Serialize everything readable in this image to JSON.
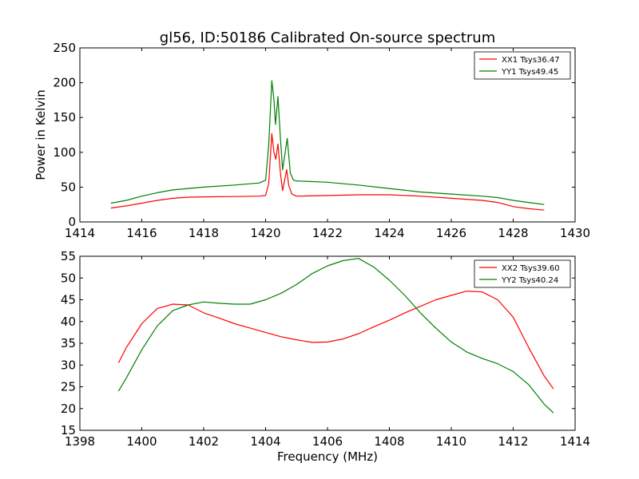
{
  "figure": {
    "title": "gl56, ID:50186 Calibrated On-source spectrum",
    "ylabel": "Power in Kelvin",
    "xlabel": "Frequency (MHz)"
  },
  "colors": {
    "red": "#ff0000",
    "green": "#007f00"
  },
  "chart_data": [
    {
      "type": "line",
      "title": "gl56, ID:50186 Calibrated On-source spectrum",
      "ylabel": "Power in Kelvin",
      "xlabel": "",
      "xlim": [
        1414,
        1430
      ],
      "ylim": [
        0,
        250
      ],
      "xticks": [
        "1414",
        "1416",
        "1418",
        "1420",
        "1422",
        "1424",
        "1426",
        "1428",
        "1430"
      ],
      "yticks": [
        "0",
        "50",
        "100",
        "150",
        "200",
        "250"
      ],
      "grid": false,
      "legend_position": "top-right",
      "series": [
        {
          "name": "XX1 Tsys36.47",
          "color": "#ff0000",
          "points": [
            [
              1415,
              20
            ],
            [
              1415.5,
              23
            ],
            [
              1416,
              27
            ],
            [
              1416.5,
              31
            ],
            [
              1417,
              34
            ],
            [
              1417.5,
              35.5
            ],
            [
              1418,
              36
            ],
            [
              1419,
              36.5
            ],
            [
              1419.8,
              37
            ],
            [
              1420.0,
              38
            ],
            [
              1420.1,
              55
            ],
            [
              1420.2,
              127
            ],
            [
              1420.27,
              100
            ],
            [
              1420.33,
              90
            ],
            [
              1420.4,
              112
            ],
            [
              1420.48,
              70
            ],
            [
              1420.55,
              45
            ],
            [
              1420.68,
              75
            ],
            [
              1420.75,
              52
            ],
            [
              1420.85,
              40
            ],
            [
              1421,
              37
            ],
            [
              1422,
              38
            ],
            [
              1423,
              39
            ],
            [
              1424,
              39
            ],
            [
              1425,
              37
            ],
            [
              1426,
              34
            ],
            [
              1427,
              31
            ],
            [
              1427.5,
              28
            ],
            [
              1428,
              22
            ],
            [
              1428.5,
              19
            ],
            [
              1429,
              17
            ]
          ]
        },
        {
          "name": "YY1 Tsys49.45",
          "color": "#007f00",
          "points": [
            [
              1415,
              27
            ],
            [
              1415.5,
              31
            ],
            [
              1416,
              37
            ],
            [
              1416.5,
              42
            ],
            [
              1417,
              46
            ],
            [
              1417.5,
              48
            ],
            [
              1418,
              50
            ],
            [
              1419,
              53
            ],
            [
              1419.8,
              56
            ],
            [
              1420.0,
              60
            ],
            [
              1420.1,
              110
            ],
            [
              1420.2,
              203
            ],
            [
              1420.27,
              175
            ],
            [
              1420.32,
              140
            ],
            [
              1420.4,
              180
            ],
            [
              1420.48,
              120
            ],
            [
              1420.55,
              75
            ],
            [
              1420.7,
              120
            ],
            [
              1420.8,
              70
            ],
            [
              1420.9,
              60
            ],
            [
              1421,
              59
            ],
            [
              1422,
              57
            ],
            [
              1423,
              53
            ],
            [
              1424,
              48
            ],
            [
              1425,
              43
            ],
            [
              1426,
              40
            ],
            [
              1427,
              37
            ],
            [
              1427.5,
              35
            ],
            [
              1428,
              31
            ],
            [
              1428.5,
              28
            ],
            [
              1429,
              25
            ]
          ]
        }
      ]
    },
    {
      "type": "line",
      "title": "",
      "ylabel": "",
      "xlabel": "Frequency (MHz)",
      "xlim": [
        1398,
        1414
      ],
      "ylim": [
        15,
        55
      ],
      "xticks": [
        "1398",
        "1400",
        "1402",
        "1404",
        "1406",
        "1408",
        "1410",
        "1412",
        "1414"
      ],
      "yticks": [
        "15",
        "20",
        "25",
        "30",
        "35",
        "40",
        "45",
        "50",
        "55"
      ],
      "grid": false,
      "legend_position": "top-right",
      "series": [
        {
          "name": "XX2 Tsys39.60",
          "color": "#ff0000",
          "points": [
            [
              1399.25,
              30.5
            ],
            [
              1399.5,
              34
            ],
            [
              1400,
              39.5
            ],
            [
              1400.5,
              43
            ],
            [
              1401,
              44
            ],
            [
              1401.5,
              43.8
            ],
            [
              1402,
              42
            ],
            [
              1402.5,
              40.8
            ],
            [
              1403,
              39.5
            ],
            [
              1403.5,
              38.5
            ],
            [
              1404,
              37.5
            ],
            [
              1404.5,
              36.5
            ],
            [
              1405,
              35.8
            ],
            [
              1405.5,
              35.2
            ],
            [
              1406,
              35.3
            ],
            [
              1406.5,
              36
            ],
            [
              1407,
              37.2
            ],
            [
              1407.5,
              38.8
            ],
            [
              1408,
              40.3
            ],
            [
              1408.5,
              42
            ],
            [
              1409,
              43.5
            ],
            [
              1409.5,
              45
            ],
            [
              1410,
              46
            ],
            [
              1410.5,
              47
            ],
            [
              1411,
              46.8
            ],
            [
              1411.5,
              45
            ],
            [
              1412,
              41
            ],
            [
              1412.5,
              34
            ],
            [
              1413,
              27.5
            ],
            [
              1413.3,
              24.5
            ]
          ]
        },
        {
          "name": "YY2 Tsys40.24",
          "color": "#007f00",
          "points": [
            [
              1399.25,
              24
            ],
            [
              1399.5,
              27
            ],
            [
              1400,
              33.5
            ],
            [
              1400.5,
              39
            ],
            [
              1401,
              42.5
            ],
            [
              1401.5,
              43.8
            ],
            [
              1402,
              44.5
            ],
            [
              1402.5,
              44.2
            ],
            [
              1403,
              44
            ],
            [
              1403.5,
              44
            ],
            [
              1404,
              45
            ],
            [
              1404.5,
              46.5
            ],
            [
              1405,
              48.5
            ],
            [
              1405.5,
              51
            ],
            [
              1406,
              52.8
            ],
            [
              1406.5,
              54
            ],
            [
              1407,
              54.5
            ],
            [
              1407.5,
              52.5
            ],
            [
              1408,
              49.5
            ],
            [
              1408.5,
              46
            ],
            [
              1409,
              42
            ],
            [
              1409.5,
              38.5
            ],
            [
              1410,
              35.3
            ],
            [
              1410.5,
              33
            ],
            [
              1411,
              31.5
            ],
            [
              1411.5,
              30.3
            ],
            [
              1412,
              28.5
            ],
            [
              1412.5,
              25.5
            ],
            [
              1413,
              21
            ],
            [
              1413.3,
              19
            ]
          ]
        }
      ]
    }
  ]
}
